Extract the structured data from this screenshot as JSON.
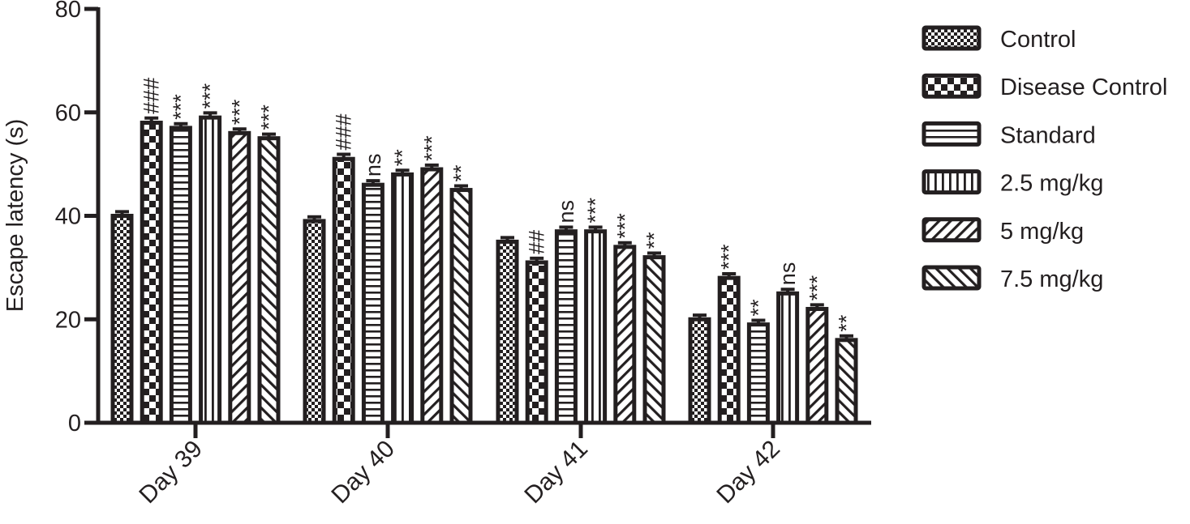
{
  "chart_data": {
    "type": "bar",
    "title": "",
    "xlabel": "",
    "ylabel": "Escape latency (s)",
    "ylim": [
      0,
      80
    ],
    "yticks": [
      0,
      20,
      40,
      60,
      80
    ],
    "grid": false,
    "legend_position": "right",
    "categories": [
      "Day 39",
      "Day 40",
      "Day 41",
      "Day 42"
    ],
    "series": [
      {
        "name": "Control",
        "pattern": "fine-checker",
        "values": [
          40,
          39,
          35,
          20
        ],
        "errors": [
          0.8,
          0.8,
          0.8,
          0.8
        ],
        "significance": [
          "",
          "",
          "",
          ""
        ]
      },
      {
        "name": "Disease Control",
        "pattern": "coarse-checker",
        "values": [
          58,
          51,
          31,
          28
        ],
        "errors": [
          0.9,
          0.9,
          0.8,
          0.8
        ],
        "significance": [
          "###",
          "###",
          "##",
          "***"
        ]
      },
      {
        "name": "Standard",
        "pattern": "horizontal-lines",
        "values": [
          57,
          46,
          37,
          19
        ],
        "errors": [
          0.8,
          0.8,
          0.8,
          0.8
        ],
        "significance": [
          "***",
          "ns",
          "ns",
          "**"
        ]
      },
      {
        "name": "2.5 mg/kg",
        "pattern": "vertical-lines",
        "values": [
          59,
          48,
          37,
          25
        ],
        "errors": [
          0.9,
          0.8,
          0.8,
          0.8
        ],
        "significance": [
          "***",
          "**",
          "***",
          "ns"
        ]
      },
      {
        "name": "5 mg/kg",
        "pattern": "forward-diagonal",
        "values": [
          56,
          49,
          34,
          22
        ],
        "errors": [
          0.8,
          0.8,
          0.8,
          0.8
        ],
        "significance": [
          "***",
          "***",
          "***",
          "***"
        ]
      },
      {
        "name": "7.5 mg/kg",
        "pattern": "back-diagonal",
        "values": [
          55,
          45,
          32,
          16
        ],
        "errors": [
          0.8,
          0.8,
          0.8,
          0.8
        ],
        "significance": [
          "***",
          "**",
          "**",
          "**"
        ]
      }
    ]
  },
  "colors": {
    "ink": "#231f20",
    "background": "#ffffff"
  }
}
